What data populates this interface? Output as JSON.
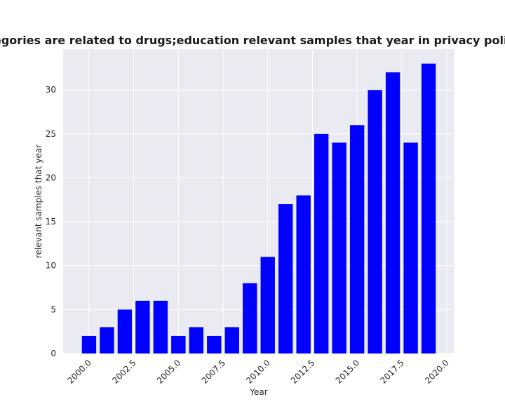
{
  "chart_data": {
    "type": "bar",
    "title": "When categories are related to drugs;education relevant samples that year in privacy policies by year",
    "xlabel": "Year",
    "ylabel": "relevant samples that year",
    "x": [
      2000,
      2001,
      2002,
      2003,
      2004,
      2005,
      2006,
      2007,
      2008,
      2009,
      2010,
      2011,
      2012,
      2013,
      2014,
      2015,
      2016,
      2017,
      2018,
      2019
    ],
    "values": [
      2,
      3,
      5,
      6,
      6,
      2,
      3,
      2,
      3,
      8,
      11,
      17,
      18,
      25,
      24,
      26,
      30,
      32,
      24,
      33
    ],
    "xlim": [
      1998.55,
      2020.45
    ],
    "ylim": [
      0,
      34.65
    ],
    "xticks": [
      "2000.0",
      "2002.5",
      "2005.0",
      "2007.5",
      "2010.0",
      "2012.5",
      "2015.0",
      "2017.5",
      "2020.0"
    ],
    "yticks": [
      "0",
      "5",
      "10",
      "15",
      "20",
      "25",
      "30"
    ],
    "bar_color": "#0000ff",
    "background_color": "#eaeaf2",
    "grid": true
  }
}
